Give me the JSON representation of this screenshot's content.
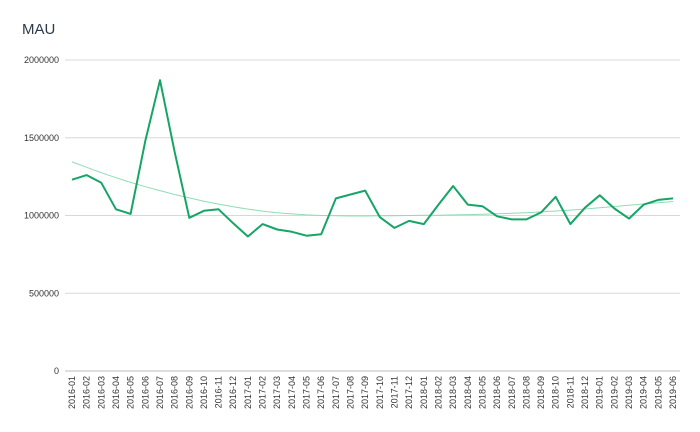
{
  "chart_data": {
    "type": "line",
    "title": "MAU",
    "xlabel": "",
    "ylabel": "",
    "ylim": [
      0,
      2000000
    ],
    "yticks": [
      0,
      500000,
      1000000,
      1500000,
      2000000
    ],
    "grid": true,
    "legend": "none",
    "colors": {
      "line": "#16a566",
      "trend": "#8fdcb4",
      "grid": "#d8d8d8"
    },
    "x": [
      "2016-01",
      "2016-02",
      "2016-03",
      "2016-04",
      "2016-05",
      "2016-06",
      "2016-07",
      "2016-08",
      "2016-09",
      "2016-10",
      "2016-11",
      "2016-12",
      "2017-01",
      "2017-02",
      "2017-03",
      "2017-04",
      "2017-05",
      "2017-06",
      "2017-07",
      "2017-08",
      "2017-09",
      "2017-10",
      "2017-11",
      "2017-12",
      "2018-01",
      "2018-02",
      "2018-03",
      "2018-04",
      "2018-05",
      "2018-06",
      "2018-07",
      "2018-08",
      "2018-09",
      "2018-10",
      "2018-11",
      "2018-12",
      "2019-01",
      "2019-02",
      "2019-03",
      "2019-04",
      "2019-05",
      "2019-06"
    ],
    "series": [
      {
        "values": [
          1230000,
          1260000,
          1210000,
          1040000,
          1010000,
          1480000,
          1870000,
          1410000,
          985000,
          1030000,
          1040000,
          950000,
          865000,
          945000,
          910000,
          895000,
          870000,
          880000,
          1110000,
          1135000,
          1160000,
          990000,
          920000,
          965000,
          945000,
          1070000,
          1190000,
          1070000,
          1060000,
          995000,
          975000,
          975000,
          1020000,
          1120000,
          945000,
          1050000,
          1130000,
          1045000,
          980000,
          1070000,
          1100000,
          1110000
        ]
      },
      {
        "values": [
          1345000,
          1310000,
          1275000,
          1243000,
          1213000,
          1185000,
          1160000,
          1135000,
          1113000,
          1092000,
          1073000,
          1056000,
          1041000,
          1028000,
          1018000,
          1010000,
          1004000,
          1000000,
          998000,
          997000,
          997000,
          998000,
          999000,
          1000000,
          1001000,
          1002000,
          1004000,
          1006000,
          1008000,
          1011000,
          1014000,
          1018000,
          1023000,
          1029000,
          1035000,
          1042000,
          1050000,
          1058000,
          1066000,
          1074000,
          1082000,
          1090000
        ]
      }
    ]
  }
}
